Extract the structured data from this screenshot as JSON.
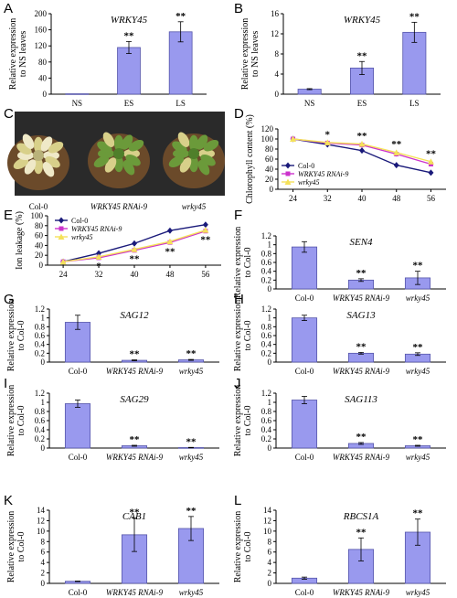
{
  "colors": {
    "bar_fill": "#9999ee",
    "bar_stroke": "#5555aa",
    "col0": "#1a1a7a",
    "rnai": "#cc33cc",
    "wrky": "#f5e15a",
    "photo_bg": "#2a2a2a",
    "leaf": "#6b9a3a",
    "yellow_leaf": "#d8d08a",
    "pot": "#6b4a2a"
  },
  "chart_data": [
    {
      "id": "A",
      "type": "bar",
      "title": "WRKY45",
      "ylabel": "Relative expression\nto NS leaves",
      "ylim": [
        0,
        200
      ],
      "yticks": [
        0,
        40,
        80,
        120,
        160,
        200
      ],
      "categories": [
        "NS",
        "ES",
        "LS"
      ],
      "category_italic": false,
      "values": [
        1,
        116,
        155
      ],
      "errors": [
        0,
        15,
        25
      ],
      "annotations": [
        "",
        "**",
        "**"
      ]
    },
    {
      "id": "B",
      "type": "bar",
      "title": "WRKY45",
      "ylabel": "Relative expression\nto NS leaves",
      "ylim": [
        0,
        16
      ],
      "yticks": [
        0,
        4,
        8,
        12,
        16
      ],
      "categories": [
        "NS",
        "ES",
        "LS"
      ],
      "category_italic": false,
      "values": [
        1,
        5.2,
        12.3
      ],
      "errors": [
        0.1,
        1.3,
        2
      ],
      "annotations": [
        "",
        "**",
        "**"
      ]
    },
    {
      "id": "D",
      "type": "line",
      "ylabel": "Chlorophyll content (%)",
      "ylim": [
        0,
        120
      ],
      "yticks": [
        0,
        20,
        40,
        60,
        80,
        100,
        120
      ],
      "x": [
        24,
        32,
        40,
        48,
        56
      ],
      "series": [
        {
          "name": "Col-0",
          "values": [
            100,
            89,
            77,
            48,
            33
          ],
          "errors": [
            2,
            5,
            5,
            5,
            3
          ],
          "color_key": "col0",
          "marker": "diamond"
        },
        {
          "name": "WRKY45 RNAi-9",
          "values": [
            100,
            92,
            88,
            70,
            50
          ],
          "errors": [
            2,
            4,
            5,
            5,
            4
          ],
          "color_key": "rnai",
          "marker": "square"
        },
        {
          "name": "wrky45",
          "values": [
            100,
            93,
            90,
            73,
            55
          ],
          "errors": [
            2,
            4,
            5,
            5,
            4
          ],
          "color_key": "wrky",
          "marker": "triangle"
        }
      ],
      "annotations": [
        {
          "x": 32,
          "text": "*"
        },
        {
          "x": 40,
          "text": "**"
        },
        {
          "x": 48,
          "text": "**"
        },
        {
          "x": 56,
          "text": "**"
        }
      ],
      "legend_position": "bottom-left"
    },
    {
      "id": "E",
      "type": "line",
      "ylabel": "Ion leakage (%)",
      "ylim": [
        0,
        100
      ],
      "yticks": [
        0,
        20,
        40,
        60,
        80,
        100
      ],
      "x": [
        24,
        32,
        40,
        48,
        56
      ],
      "series": [
        {
          "name": "Col-0",
          "values": [
            7,
            24,
            44,
            70,
            82
          ],
          "errors": [
            1,
            3,
            3,
            4,
            3
          ],
          "color_key": "col0",
          "marker": "diamond"
        },
        {
          "name": "WRKY45 RNAi-9",
          "values": [
            7,
            15,
            30,
            46,
            69
          ],
          "errors": [
            1,
            3,
            3,
            4,
            3
          ],
          "color_key": "rnai",
          "marker": "square"
        },
        {
          "name": "wrky45",
          "values": [
            7,
            17,
            32,
            48,
            71
          ],
          "errors": [
            1,
            3,
            3,
            4,
            3
          ],
          "color_key": "wrky",
          "marker": "triangle"
        }
      ],
      "annotations": [
        {
          "x": 32,
          "text": "*"
        },
        {
          "x": 40,
          "text": "**"
        },
        {
          "x": 48,
          "text": "**"
        },
        {
          "x": 56,
          "text": "**"
        }
      ],
      "legend_position": "top-left"
    },
    {
      "id": "F",
      "type": "bar",
      "title": "SEN4",
      "ylabel": "Relative expression\nto Col-0",
      "ylim": [
        0,
        1.2
      ],
      "yticks": [
        0,
        0.2,
        0.4,
        0.6,
        0.8,
        1,
        1.2
      ],
      "categories": [
        "Col-0",
        "WRKY45 RNAi-9",
        "wrky45"
      ],
      "category_italic": true,
      "values": [
        0.95,
        0.2,
        0.25
      ],
      "errors": [
        0.12,
        0.03,
        0.15
      ],
      "annotations": [
        "",
        "**",
        "**"
      ]
    },
    {
      "id": "G",
      "type": "bar",
      "title": "SAG12",
      "ylabel": "Relative expression\nto Col-0",
      "ylim": [
        0,
        1.2
      ],
      "yticks": [
        0,
        0.2,
        0.4,
        0.6,
        0.8,
        1,
        1.2
      ],
      "categories": [
        "Col-0",
        "WRKY45 RNAi-9",
        "wrky45"
      ],
      "category_italic": true,
      "values": [
        0.9,
        0.04,
        0.05
      ],
      "errors": [
        0.16,
        0.01,
        0.01
      ],
      "annotations": [
        "",
        "**",
        "**"
      ]
    },
    {
      "id": "H",
      "type": "bar",
      "title": "SAG13",
      "ylabel": "Relative expression\nto Col-0",
      "ylim": [
        0,
        1.2
      ],
      "yticks": [
        0,
        0.2,
        0.4,
        0.6,
        0.8,
        1,
        1.2
      ],
      "categories": [
        "Col-0",
        "WRKY45 RNAi-9",
        "wrky45"
      ],
      "category_italic": true,
      "values": [
        1,
        0.2,
        0.18
      ],
      "errors": [
        0.06,
        0.02,
        0.03
      ],
      "annotations": [
        "",
        "**",
        "**"
      ]
    },
    {
      "id": "I",
      "type": "bar",
      "title": "SAG29",
      "ylabel": "Relative expression\nto Col-0",
      "ylim": [
        0,
        1.2
      ],
      "yticks": [
        0,
        0.2,
        0.4,
        0.6,
        0.8,
        1,
        1.2
      ],
      "categories": [
        "Col-0",
        "WRKY45 RNAi-9",
        "wrky45"
      ],
      "category_italic": true,
      "values": [
        0.97,
        0.05,
        0.01
      ],
      "errors": [
        0.08,
        0.01,
        0.005
      ],
      "annotations": [
        "",
        "**",
        "**"
      ]
    },
    {
      "id": "J",
      "type": "bar",
      "title": "SAG113",
      "ylabel": "Relative expression\nto Col-0",
      "ylim": [
        0,
        1.2
      ],
      "yticks": [
        0,
        0.2,
        0.4,
        0.6,
        0.8,
        1,
        1.2
      ],
      "categories": [
        "Col-0",
        "WRKY45 RNAi-9",
        "wrky45"
      ],
      "category_italic": true,
      "values": [
        1.05,
        0.1,
        0.05
      ],
      "errors": [
        0.08,
        0.02,
        0.01
      ],
      "annotations": [
        "",
        "**",
        "**"
      ]
    },
    {
      "id": "K",
      "type": "bar",
      "title": "CAB1",
      "ylabel": "Relative expression\nto Col-0",
      "ylim": [
        0,
        14
      ],
      "yticks": [
        0,
        2,
        4,
        6,
        8,
        10,
        12,
        14
      ],
      "categories": [
        "Col-0",
        "WRKY45 RNAi-9",
        "wrky45"
      ],
      "category_italic": true,
      "values": [
        0.4,
        9.3,
        10.5
      ],
      "errors": [
        0.05,
        3.2,
        2.3
      ],
      "annotations": [
        "",
        "**",
        "**"
      ]
    },
    {
      "id": "L",
      "type": "bar",
      "title": "RBCS1A",
      "ylabel": "Relative expression\nto Col-0",
      "ylim": [
        0,
        14
      ],
      "yticks": [
        0,
        2,
        4,
        6,
        8,
        10,
        12,
        14
      ],
      "categories": [
        "Col-0",
        "WRKY45 RNAi-9",
        "wrky45"
      ],
      "category_italic": true,
      "values": [
        1,
        6.5,
        9.8
      ],
      "errors": [
        0.2,
        2.2,
        2.5
      ],
      "annotations": [
        "",
        "**",
        "**"
      ]
    }
  ],
  "photo_panel": {
    "id": "C",
    "labels": [
      "Col-0",
      "WRKY45 RNAi-9",
      "wrky45"
    ]
  }
}
